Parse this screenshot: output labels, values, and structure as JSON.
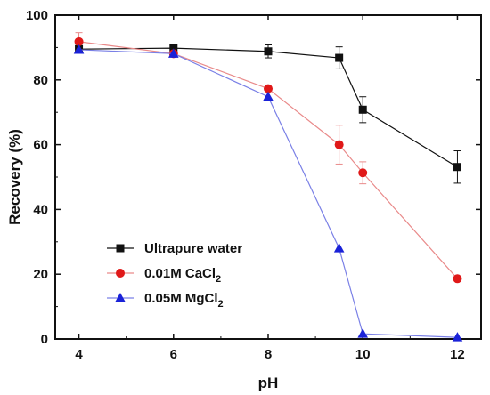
{
  "chart_data": {
    "type": "line",
    "title": "",
    "xlabel": "pH",
    "ylabel": "Recovery (%)",
    "xlim": [
      3.5,
      12.5
    ],
    "ylim": [
      0,
      100
    ],
    "xticks": [
      "4",
      "6",
      "8",
      "10",
      "12"
    ],
    "yticks": [
      "0",
      "20",
      "40",
      "60",
      "80",
      "100"
    ],
    "grid": false,
    "legend_position": "bottom-left",
    "series": [
      {
        "name": "Ultrapure water",
        "name_main": "Ultrapure water",
        "name_sub": "",
        "color": "#111111",
        "marker": "square",
        "x": [
          4,
          6,
          8,
          9.5,
          10,
          12
        ],
        "y": [
          89.5,
          89.8,
          88.8,
          86.8,
          70.8,
          53.1
        ],
        "error": [
          1.0,
          1.0,
          2.0,
          3.4,
          4.0,
          5.0
        ]
      },
      {
        "name": "0.01M CaCl2",
        "name_main": "0.01M CaCl",
        "name_sub": "2",
        "color": "#e01818",
        "line_color": "#e98a8a",
        "marker": "circle",
        "x": [
          4,
          6,
          8,
          9.5,
          10,
          12
        ],
        "y": [
          91.8,
          88.1,
          77.3,
          60.0,
          51.3,
          18.6
        ],
        "error": [
          2.8,
          0.6,
          0.6,
          6.0,
          3.4,
          0.3
        ]
      },
      {
        "name": "0.05M MgCl2",
        "name_main": "0.05M MgCl",
        "name_sub": "2",
        "color": "#1a22d8",
        "line_color": "#7a80e6",
        "marker": "triangle",
        "x": [
          4,
          6,
          8,
          9.5,
          10,
          12
        ],
        "y": [
          89.3,
          88.1,
          74.8,
          28.0,
          1.6,
          0.5
        ],
        "error": [
          0.0,
          0.0,
          0.0,
          0.0,
          0.0,
          0.0
        ]
      }
    ]
  }
}
